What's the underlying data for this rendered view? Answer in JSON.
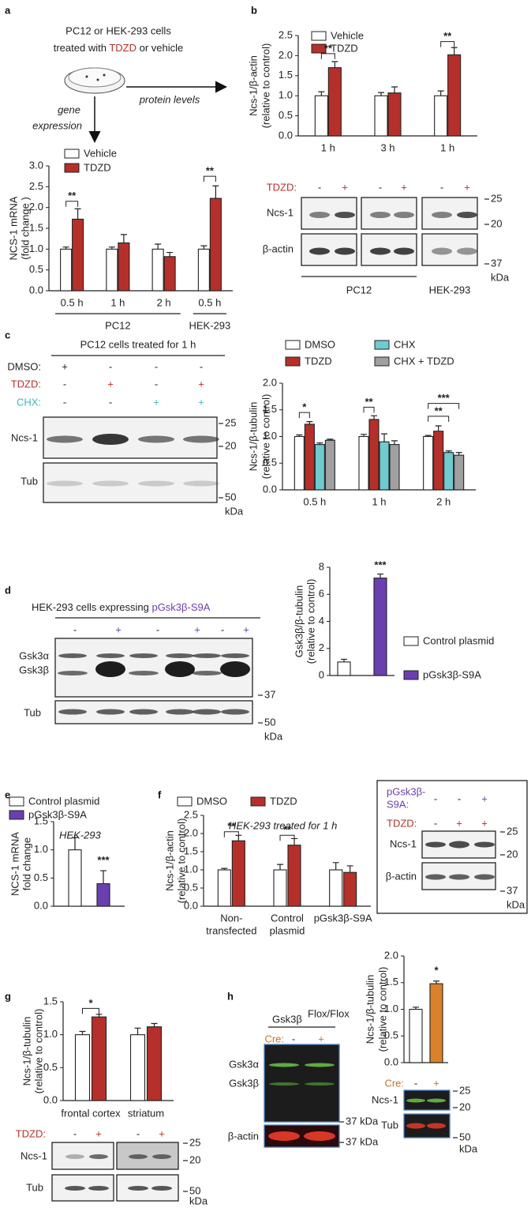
{
  "chart_data": [
    {
      "type": "bar",
      "ylabel": [
        "NCS-1 mRNA",
        "(fold change )"
      ],
      "categories": [
        "0.5 h",
        "1 h",
        "2 h",
        "0.5 h"
      ],
      "group_labels": [
        "PC12",
        "HEK-293"
      ],
      "series": [
        {
          "name": "Vehicle",
          "color": "#ffffff",
          "values": [
            1.0,
            1.0,
            1.0,
            1.0
          ],
          "errors": [
            0.05,
            0.05,
            0.12,
            0.08
          ]
        },
        {
          "name": "TDZD",
          "color": "#b5302a",
          "values": [
            1.72,
            1.15,
            0.82,
            2.22
          ],
          "errors": [
            0.25,
            0.2,
            0.1,
            0.3
          ]
        }
      ],
      "ylim": [
        0,
        3
      ],
      "yticks": [
        {
          "value": 0,
          "label": "0.0"
        },
        0.5,
        {
          "value": 1,
          "label": "1.0"
        },
        1.5,
        {
          "value": 2,
          "label": "2.0"
        },
        2.5,
        {
          "value": 3,
          "label": "3.0"
        }
      ],
      "annotations": [
        "**",
        "**"
      ]
    },
    {
      "type": "bar",
      "ylabel": [
        "Ncs-1/β-actin",
        "(relative to control)"
      ],
      "categories": [
        "1 h",
        "3 h",
        "1 h"
      ],
      "series": [
        {
          "name": "Vehicle",
          "color": "#ffffff",
          "values": [
            1.0,
            1.0,
            1.0
          ],
          "errors": [
            0.1,
            0.08,
            0.12
          ]
        },
        {
          "name": "TDZD",
          "color": "#b5302a",
          "values": [
            1.7,
            1.07,
            2.02
          ],
          "errors": [
            0.15,
            0.15,
            0.18
          ]
        }
      ],
      "ylim": [
        0,
        2.5
      ],
      "yticks": [
        {
          "value": 0,
          "label": "0.0"
        },
        0.5,
        {
          "value": 1,
          "label": "1.0"
        },
        1.5,
        {
          "value": 2,
          "label": "2.0"
        },
        2.5
      ],
      "annotations": [
        "**",
        "**"
      ]
    },
    {
      "type": "bar",
      "ylabel": [
        "Ncs-1/β-tubulin",
        "(relative to control)"
      ],
      "categories": [
        "0.5 h",
        "1 h",
        "2 h"
      ],
      "series": [
        {
          "name": "DMSO",
          "color": "#ffffff",
          "values": [
            1.0,
            1.0,
            1.0
          ],
          "errors": [
            0.03,
            0.04,
            0.02
          ]
        },
        {
          "name": "TDZD",
          "color": "#b5302a",
          "values": [
            1.23,
            1.32,
            1.1
          ],
          "errors": [
            0.05,
            0.07,
            0.1
          ]
        },
        {
          "name": "CHX",
          "color": "#6fcbcf",
          "values": [
            0.85,
            0.9,
            0.7
          ],
          "errors": [
            0.03,
            0.15,
            0.03
          ]
        },
        {
          "name": "CHX + TDZD",
          "color": "#a0a0a0",
          "values": [
            0.93,
            0.85,
            0.65
          ],
          "errors": [
            0.02,
            0.07,
            0.05
          ]
        }
      ],
      "ylim": [
        0,
        2
      ],
      "yticks": [
        {
          "value": 0,
          "label": "0.0"
        },
        0.5,
        {
          "value": 1,
          "label": "1.0"
        },
        1.5,
        {
          "value": 2,
          "label": "2.0"
        }
      ],
      "annotations": [
        "*",
        "**",
        "**",
        "***"
      ]
    },
    {
      "type": "bar",
      "ylabel": [
        "Gsk3β/β-tubulin",
        "(relative to control)"
      ],
      "categories": [
        null
      ],
      "series": [
        {
          "name": "Control plasmid",
          "color": "#ffffff",
          "values": [
            1.0
          ],
          "errors": [
            0.2
          ]
        },
        {
          "name": "pGsk3β-S9A",
          "color": "#6a3fb0",
          "values": [
            7.2
          ],
          "errors": [
            0.3
          ]
        }
      ],
      "ylim": [
        0,
        8
      ],
      "yticks": [
        0,
        2,
        4,
        6,
        8
      ],
      "annotations": [
        "***"
      ]
    },
    {
      "type": "bar",
      "ylabel": [
        "NCS-1 mRNA",
        "fold change"
      ],
      "subtitle": "HEK-293",
      "categories": [
        null
      ],
      "series": [
        {
          "name": "Control plasmid",
          "color": "#ffffff",
          "values": [
            1.0
          ],
          "errors": [
            0.22
          ]
        },
        {
          "name": "pGsk3β-S9A",
          "color": "#6a3fb0",
          "values": [
            0.4
          ],
          "errors": [
            0.23
          ]
        }
      ],
      "ylim": [
        0,
        1.5
      ],
      "yticks": [
        {
          "value": 0,
          "label": "0.0"
        },
        0.5,
        {
          "value": 1,
          "label": "1.0"
        },
        1.5
      ],
      "annotations": [
        "***"
      ]
    },
    {
      "type": "bar",
      "ylabel": [
        "Ncs-1/β-actin",
        "(relative to control)"
      ],
      "subtitle": "HEK-293 treated for 1 h",
      "categories": [
        [
          "Non-",
          "transfected"
        ],
        [
          "Control",
          "plasmid"
        ],
        [
          "pGsk3β-S9A"
        ]
      ],
      "series": [
        {
          "name": "DMSO",
          "color": "#ffffff",
          "values": [
            1.0,
            1.0,
            1.0
          ],
          "errors": [
            0.04,
            0.15,
            0.2
          ]
        },
        {
          "name": "TDZD",
          "color": "#b5302a",
          "values": [
            1.8,
            1.68,
            0.93
          ],
          "errors": [
            0.15,
            0.18,
            0.18
          ]
        }
      ],
      "ylim": [
        0,
        2.5
      ],
      "yticks": [
        {
          "value": 0,
          "label": "0.0"
        },
        0.5,
        {
          "value": 1,
          "label": "1.0"
        },
        1.5,
        {
          "value": 2,
          "label": "2.0"
        },
        2.5
      ],
      "annotations": [
        "**",
        "**"
      ]
    },
    {
      "type": "bar",
      "ylabel": [
        "Ncs-1/β-tubulin",
        "(relative to control)"
      ],
      "categories": [
        "frontal cortex",
        "striatum"
      ],
      "series": [
        {
          "color": "#ffffff",
          "values": [
            1.0,
            1.0
          ],
          "errors": [
            0.05,
            0.1
          ]
        },
        {
          "color": "#b5302a",
          "values": [
            1.27,
            1.12
          ],
          "errors": [
            0.04,
            0.05
          ]
        }
      ],
      "ylim": [
        0,
        1.5
      ],
      "yticks": [
        {
          "value": 0,
          "label": "0.0"
        },
        0.5,
        {
          "value": 1,
          "label": "1.0"
        },
        1.5
      ],
      "annotations": [
        "*"
      ]
    },
    {
      "type": "bar",
      "ylabel": [
        "Ncs-1/β-tubulin",
        "(relative to control)"
      ],
      "categories": [
        null
      ],
      "series": [
        {
          "color": "#ffffff",
          "values": [
            1.0
          ],
          "errors": [
            0.04
          ]
        },
        {
          "color": "#d9822b",
          "values": [
            1.48
          ],
          "errors": [
            0.05
          ]
        }
      ],
      "ylim": [
        0,
        2
      ],
      "yticks": [
        {
          "value": 0,
          "label": "0.0"
        },
        0.5,
        {
          "value": 1,
          "label": "1.0"
        },
        1.5,
        {
          "value": 2,
          "label": "2.0"
        }
      ],
      "annotations": [
        "*"
      ]
    }
  ],
  "figure": {
    "panel_letters": [
      "a",
      "b",
      "c",
      "d",
      "e",
      "f",
      "g",
      "h"
    ],
    "a": {
      "line1": "PC12 or HEK-293 cells",
      "line2": [
        "treated with ",
        "TDZD",
        " or vehicle"
      ],
      "gene": "gene",
      "expression": "expression",
      "protein": "protein levels"
    },
    "b_blot": {
      "treatment": "TDZD:",
      "signs": [
        "-",
        "+",
        "-",
        "+",
        "-",
        "+"
      ],
      "rows": [
        "Ncs-1",
        "β-actin"
      ],
      "markers": [
        "25",
        "20",
        "37"
      ],
      "unit": "kDa",
      "groups": [
        "PC12",
        "HEK-293"
      ]
    },
    "c_blot": {
      "title": "PC12 cells treated for 1 h",
      "treatments": [
        "DMSO:",
        "TDZD:",
        "CHX:"
      ],
      "signs": [
        [
          "+",
          "-",
          "-",
          "-"
        ],
        [
          "-",
          "+",
          "-",
          "+"
        ],
        [
          "-",
          "-",
          "+",
          "+"
        ]
      ],
      "rows": [
        "Ncs-1",
        "Tub"
      ],
      "markers": [
        "25",
        "20",
        "50"
      ],
      "unit": "kDa"
    },
    "d_blot": {
      "title": [
        "HEK-293 cells expressing ",
        "pGsk3β-S9A"
      ],
      "signs": [
        "-",
        "+",
        "-",
        "+",
        "-",
        "+"
      ],
      "rows": [
        "Gsk3α",
        "Gsk3β",
        "Tub"
      ],
      "markers": [
        "37",
        "50"
      ],
      "unit": "kDa"
    },
    "f_blot": {
      "treatments": [
        [
          "pGsk3β-",
          "S9A:"
        ],
        [
          "TDZD:"
        ]
      ],
      "signs": [
        [
          "-",
          "-",
          "+"
        ],
        [
          "-",
          "+",
          "+"
        ]
      ],
      "rows": [
        "Ncs-1",
        "β-actin"
      ],
      "markers": [
        "25",
        "20",
        "37"
      ],
      "unit": "kDa"
    },
    "g_blot": {
      "treatment": "TDZD:",
      "signs": [
        "-",
        "+",
        "-",
        "+"
      ],
      "rows": [
        "Ncs-1",
        "Tub"
      ],
      "markers": [
        "25",
        "20",
        "50"
      ],
      "unit": "kDa"
    },
    "h_blot": {
      "genotype": "Gsk3β",
      "superscript": "Flox/Flox",
      "treatment": "Cre:",
      "signs": [
        "-",
        "+"
      ],
      "rows": [
        "Gsk3α",
        "Gsk3β",
        "β-actin"
      ],
      "markers": [
        "37 kDa",
        "37 kDa"
      ]
    },
    "h_chart_blot": {
      "treatment": "Cre:",
      "signs": [
        "-",
        "+"
      ],
      "rows": [
        "Ncs-1",
        "Tub"
      ],
      "markers": [
        "25",
        "20",
        "50"
      ],
      "unit": "kDa"
    }
  }
}
